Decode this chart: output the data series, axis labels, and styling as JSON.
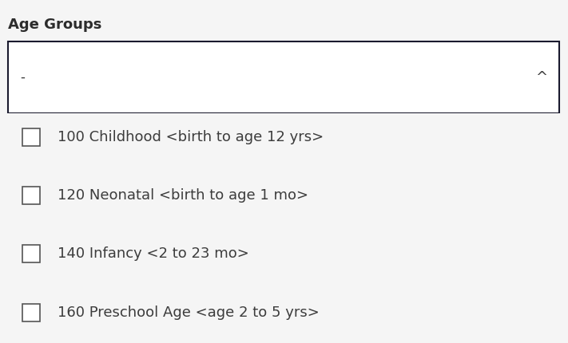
{
  "title": "Age Groups",
  "title_fontsize": 13,
  "title_fontweight": "bold",
  "title_color": "#2c2c2c",
  "background_color": "#f5f5f5",
  "dropdown_dash": "-",
  "dropdown_caret": "^",
  "dropdown_border_color": "#1a1a2e",
  "dropdown_bg": "#ffffff",
  "items": [
    "100 Childhood <birth to age 12 yrs>",
    "120 Neonatal <birth to age 1 mo>",
    "140 Infancy <2 to 23 mo>",
    "160 Preschool Age <age 2 to 5 yrs>"
  ],
  "item_fontsize": 13,
  "item_color": "#3c3c3c",
  "checkbox_color": "#555555",
  "figsize": [
    7.11,
    4.3
  ],
  "dpi": 100
}
